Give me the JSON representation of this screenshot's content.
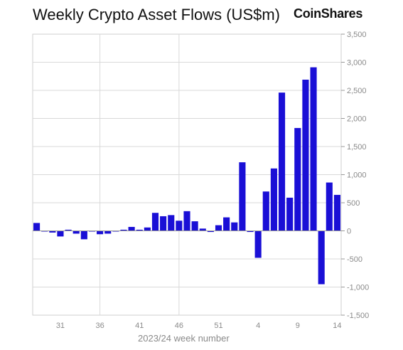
{
  "chart_data": {
    "type": "bar",
    "title": "Weekly Crypto Asset Flows (US$m)",
    "brand": "CoinShares",
    "xlabel": "2023/24 week number",
    "ylabel": "",
    "ylim": [
      -1500,
      3500
    ],
    "yticks": [
      3500,
      3000,
      2500,
      2000,
      1500,
      1000,
      500,
      0,
      -500,
      -1000,
      -1500
    ],
    "ytick_labels": [
      "3,500",
      "3,000",
      "2,500",
      "2,000",
      "1,500",
      "1,000",
      "500",
      "0",
      "-500",
      "-1,000",
      "-1,500"
    ],
    "xtick_labels": [
      "31",
      "36",
      "41",
      "46",
      "51",
      "4",
      "9",
      "14"
    ],
    "xtick_categories": [
      "31",
      "36",
      "41",
      "46",
      "51",
      "4",
      "9",
      "14"
    ],
    "vertical_grid_at": [
      "36",
      "46"
    ],
    "y_axis_side": "right",
    "grid": true,
    "bar_color": "#1a0fd6",
    "categories": [
      "28",
      "29",
      "30",
      "31",
      "32",
      "33",
      "34",
      "35",
      "36",
      "37",
      "38",
      "39",
      "40",
      "41",
      "42",
      "43",
      "44",
      "45",
      "46",
      "47",
      "48",
      "49",
      "50",
      "51",
      "52",
      "1",
      "2",
      "3",
      "4",
      "5",
      "6",
      "7",
      "8",
      "9",
      "10",
      "11",
      "12",
      "13",
      "14"
    ],
    "values": [
      140,
      -10,
      -30,
      -100,
      20,
      -50,
      -150,
      -10,
      -60,
      -50,
      -10,
      20,
      70,
      20,
      60,
      320,
      260,
      280,
      180,
      350,
      170,
      40,
      -20,
      100,
      240,
      150,
      1220,
      -20,
      -480,
      700,
      1110,
      2460,
      590,
      1830,
      2690,
      2910,
      -950,
      860,
      640
    ]
  }
}
